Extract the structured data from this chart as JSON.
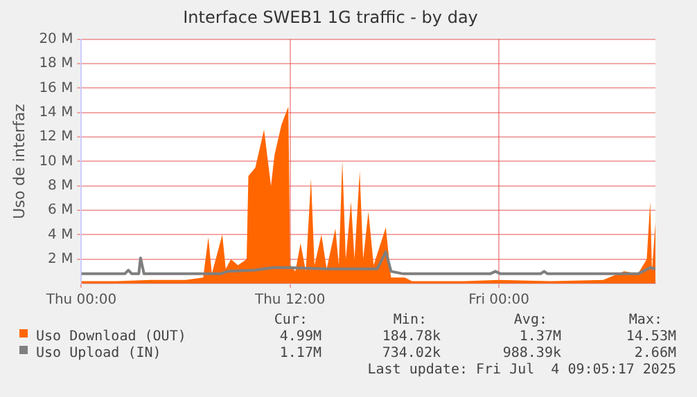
{
  "chart_data": {
    "type": "area",
    "title": "Interface SWEB1 1G traffic - by day",
    "ylabel": "Uso de interfaz",
    "xlim": [
      "2025-07-03T00:00",
      "2025-07-04T09:00"
    ],
    "xticks": [
      {
        "value": "2025-07-03T00:00",
        "label": "Thu 00:00"
      },
      {
        "value": "2025-07-03T12:00",
        "label": "Thu 12:00"
      },
      {
        "value": "2025-07-04T00:00",
        "label": "Fri 00:00"
      }
    ],
    "ylim": [
      0,
      20
    ],
    "yticks": [
      {
        "value": 2,
        "label": "2 M"
      },
      {
        "value": 4,
        "label": "4 M"
      },
      {
        "value": 6,
        "label": "6 M"
      },
      {
        "value": 8,
        "label": "8 M"
      },
      {
        "value": 10,
        "label": "10 M"
      },
      {
        "value": 12,
        "label": "12 M"
      },
      {
        "value": 14,
        "label": "14 M"
      },
      {
        "value": 16,
        "label": "16 M"
      },
      {
        "value": 18,
        "label": "18 M"
      },
      {
        "value": 20,
        "label": "20 M"
      }
    ],
    "grid": true,
    "legend": "bottom",
    "series": [
      {
        "name": "Uso Download (OUT)",
        "type": "area",
        "color": "#ff6600",
        "x": [
          "2025-07-03T00:00",
          "2025-07-03T02:00",
          "2025-07-03T04:00",
          "2025-07-03T06:00",
          "2025-07-03T07:00",
          "2025-07-03T07:18",
          "2025-07-03T07:30",
          "2025-07-03T08:06",
          "2025-07-03T08:18",
          "2025-07-03T08:36",
          "2025-07-03T09:00",
          "2025-07-03T09:30",
          "2025-07-03T09:36",
          "2025-07-03T10:00",
          "2025-07-03T10:30",
          "2025-07-03T10:54",
          "2025-07-03T11:06",
          "2025-07-03T11:30",
          "2025-07-03T11:54",
          "2025-07-03T12:00",
          "2025-07-03T12:18",
          "2025-07-03T12:36",
          "2025-07-03T12:54",
          "2025-07-03T13:12",
          "2025-07-03T13:24",
          "2025-07-03T13:48",
          "2025-07-03T14:06",
          "2025-07-03T14:36",
          "2025-07-03T14:48",
          "2025-07-03T15:00",
          "2025-07-03T15:12",
          "2025-07-03T15:30",
          "2025-07-03T15:42",
          "2025-07-03T16:00",
          "2025-07-03T16:12",
          "2025-07-03T16:30",
          "2025-07-03T16:48",
          "2025-07-03T17:30",
          "2025-07-03T17:48",
          "2025-07-03T18:36",
          "2025-07-03T19:00",
          "2025-07-03T22:00",
          "2025-07-04T00:00",
          "2025-07-04T03:00",
          "2025-07-04T06:00",
          "2025-07-04T07:12",
          "2025-07-04T08:00",
          "2025-07-04T08:30",
          "2025-07-04T08:42",
          "2025-07-04T08:48",
          "2025-07-04T09:00"
        ],
        "values": [
          0.2,
          0.2,
          0.3,
          0.3,
          0.5,
          3.8,
          0.8,
          4,
          1.2,
          2,
          1.5,
          2,
          8.8,
          9.5,
          12.6,
          8,
          10.5,
          13,
          14.5,
          1.5,
          1,
          3.3,
          1,
          8.6,
          1.5,
          4,
          1.2,
          4.5,
          1.5,
          10.1,
          2,
          6.7,
          2,
          9.2,
          2,
          5.9,
          1.5,
          4.6,
          0.5,
          0.5,
          0.2,
          0.2,
          0.3,
          0.2,
          0.3,
          1,
          0.8,
          2,
          6.7,
          1,
          5
        ]
      },
      {
        "name": "Uso Upload (IN)",
        "type": "line",
        "color": "#7f7f7f",
        "x": [
          "2025-07-03T00:00",
          "2025-07-03T02:30",
          "2025-07-03T02:42",
          "2025-07-03T02:54",
          "2025-07-03T03:18",
          "2025-07-03T03:24",
          "2025-07-03T03:36",
          "2025-07-03T08:00",
          "2025-07-03T08:24",
          "2025-07-03T10:00",
          "2025-07-03T11:00",
          "2025-07-03T12:00",
          "2025-07-03T14:00",
          "2025-07-03T17:00",
          "2025-07-03T17:30",
          "2025-07-03T17:48",
          "2025-07-03T18:30",
          "2025-07-03T23:30",
          "2025-07-03T23:48",
          "2025-07-04T00:06",
          "2025-07-04T02:24",
          "2025-07-04T02:36",
          "2025-07-04T02:48",
          "2025-07-04T08:00",
          "2025-07-04T08:42",
          "2025-07-04T09:00"
        ],
        "values": [
          0.8,
          0.8,
          1.1,
          0.8,
          0.8,
          2.1,
          0.8,
          0.8,
          1,
          1.1,
          1.3,
          1.3,
          1.2,
          1.2,
          2.6,
          1,
          0.8,
          0.8,
          1,
          0.8,
          0.8,
          1,
          0.8,
          0.8,
          1.3,
          1.2
        ]
      }
    ],
    "annotations": [
      "Cur:",
      "Min:",
      "Avg:",
      "Max:",
      "4.99M",
      "184.78k",
      "1.37M",
      "14.53M",
      "1.17M",
      "734.02k",
      "988.39k",
      "2.66M",
      "Last update: Fri Jul  4 09:05:17 2025"
    ]
  }
}
